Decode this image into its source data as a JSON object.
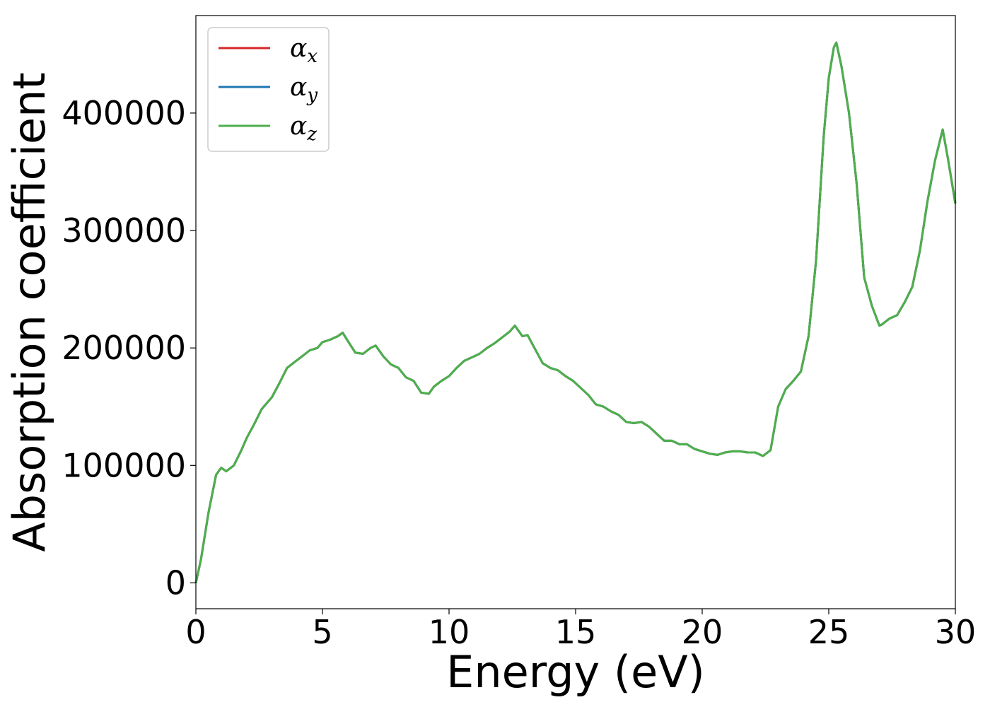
{
  "chart_data": {
    "type": "line",
    "title": "",
    "xlabel": "Energy (eV)",
    "ylabel": "Absorption coefficient",
    "xlim": [
      0,
      30
    ],
    "ylim": [
      -22000,
      483000
    ],
    "xticks": [
      0,
      5,
      10,
      15,
      20,
      25,
      30
    ],
    "xtick_labels": [
      "0",
      "5",
      "10",
      "15",
      "20",
      "25",
      "30"
    ],
    "yticks": [
      0,
      100000,
      200000,
      300000,
      400000
    ],
    "ytick_labels": [
      "0",
      "100000",
      "200000",
      "300000",
      "400000"
    ],
    "grid": false,
    "legend_position": "top-left",
    "x": [
      0.0,
      0.2,
      0.5,
      0.8,
      1.0,
      1.2,
      1.5,
      1.8,
      2.0,
      2.3,
      2.6,
      2.8,
      3.0,
      3.3,
      3.6,
      3.9,
      4.2,
      4.5,
      4.8,
      5.0,
      5.3,
      5.6,
      5.8,
      6.0,
      6.3,
      6.6,
      6.9,
      7.1,
      7.4,
      7.7,
      8.0,
      8.3,
      8.6,
      8.9,
      9.2,
      9.4,
      9.7,
      10.0,
      10.3,
      10.6,
      10.9,
      11.2,
      11.5,
      11.8,
      12.1,
      12.4,
      12.6,
      12.9,
      13.1,
      13.4,
      13.7,
      14.0,
      14.3,
      14.6,
      14.9,
      15.2,
      15.5,
      15.8,
      16.1,
      16.4,
      16.7,
      17.0,
      17.3,
      17.6,
      17.9,
      18.2,
      18.5,
      18.8,
      19.1,
      19.4,
      19.7,
      20.0,
      20.3,
      20.6,
      20.9,
      21.2,
      21.5,
      21.8,
      22.1,
      22.4,
      22.7,
      23.0,
      23.3,
      23.6,
      23.9,
      24.2,
      24.5,
      24.8,
      25.0,
      25.2,
      25.3,
      25.5,
      25.8,
      26.1,
      26.4,
      26.7,
      27.0,
      27.1,
      27.4,
      27.7,
      28.0,
      28.3,
      28.6,
      28.9,
      29.2,
      29.5,
      29.7,
      30.0
    ],
    "series": [
      {
        "name": "αx",
        "color": "#d62728",
        "y": [
          0,
          20000,
          60000,
          92000,
          98000,
          95000,
          100000,
          113000,
          123000,
          135000,
          148000,
          153000,
          158000,
          170000,
          183000,
          188000,
          193000,
          198000,
          200000,
          205000,
          207000,
          210000,
          213000,
          206000,
          196000,
          195000,
          200000,
          202000,
          193000,
          186000,
          183000,
          175000,
          172000,
          162000,
          161000,
          167000,
          172000,
          176000,
          183000,
          189000,
          192000,
          195000,
          200000,
          204000,
          209000,
          214000,
          219000,
          210000,
          211000,
          199000,
          187000,
          183000,
          181000,
          176000,
          172000,
          166000,
          160000,
          152000,
          150000,
          146000,
          143000,
          137000,
          136000,
          137000,
          133000,
          127000,
          121000,
          121000,
          118000,
          118000,
          114000,
          112000,
          110000,
          109000,
          111000,
          112000,
          112000,
          111000,
          111000,
          108000,
          113000,
          150000,
          165000,
          172000,
          180000,
          210000,
          275000,
          380000,
          430000,
          456000,
          460000,
          440000,
          400000,
          340000,
          260000,
          236000,
          219000,
          220000,
          225000,
          228000,
          239000,
          252000,
          283000,
          325000,
          360000,
          386000,
          362000,
          323000
        ]
      },
      {
        "name": "αy",
        "color": "#1f77b4",
        "y": [
          0,
          20000,
          60000,
          92000,
          98000,
          95000,
          100000,
          113000,
          123000,
          135000,
          148000,
          153000,
          158000,
          170000,
          183000,
          188000,
          193000,
          198000,
          200000,
          205000,
          207000,
          210000,
          213000,
          206000,
          196000,
          195000,
          200000,
          202000,
          193000,
          186000,
          183000,
          175000,
          172000,
          162000,
          161000,
          167000,
          172000,
          176000,
          183000,
          189000,
          192000,
          195000,
          200000,
          204000,
          209000,
          214000,
          219000,
          210000,
          211000,
          199000,
          187000,
          183000,
          181000,
          176000,
          172000,
          166000,
          160000,
          152000,
          150000,
          146000,
          143000,
          137000,
          136000,
          137000,
          133000,
          127000,
          121000,
          121000,
          118000,
          118000,
          114000,
          112000,
          110000,
          109000,
          111000,
          112000,
          112000,
          111000,
          111000,
          108000,
          113000,
          150000,
          165000,
          172000,
          180000,
          210000,
          275000,
          380000,
          430000,
          456000,
          460000,
          440000,
          400000,
          340000,
          260000,
          236000,
          219000,
          220000,
          225000,
          228000,
          239000,
          252000,
          283000,
          325000,
          360000,
          386000,
          362000,
          323000
        ]
      },
      {
        "name": "αz",
        "color": "#4daf4a",
        "y": [
          0,
          20000,
          60000,
          92000,
          98000,
          95000,
          100000,
          113000,
          123000,
          135000,
          148000,
          153000,
          158000,
          170000,
          183000,
          188000,
          193000,
          198000,
          200000,
          205000,
          207000,
          210000,
          213000,
          206000,
          196000,
          195000,
          200000,
          202000,
          193000,
          186000,
          183000,
          175000,
          172000,
          162000,
          161000,
          167000,
          172000,
          176000,
          183000,
          189000,
          192000,
          195000,
          200000,
          204000,
          209000,
          214000,
          219000,
          210000,
          211000,
          199000,
          187000,
          183000,
          181000,
          176000,
          172000,
          166000,
          160000,
          152000,
          150000,
          146000,
          143000,
          137000,
          136000,
          137000,
          133000,
          127000,
          121000,
          121000,
          118000,
          118000,
          114000,
          112000,
          110000,
          109000,
          111000,
          112000,
          112000,
          111000,
          111000,
          108000,
          113000,
          150000,
          165000,
          172000,
          180000,
          210000,
          275000,
          380000,
          430000,
          456000,
          460000,
          440000,
          400000,
          340000,
          260000,
          236000,
          219000,
          220000,
          225000,
          228000,
          239000,
          252000,
          283000,
          325000,
          360000,
          386000,
          362000,
          323000
        ]
      }
    ],
    "legend": [
      {
        "symbol": "α",
        "subscript": "x",
        "color": "#d62728"
      },
      {
        "symbol": "α",
        "subscript": "y",
        "color": "#1f77b4"
      },
      {
        "symbol": "α",
        "subscript": "z",
        "color": "#4daf4a"
      }
    ]
  }
}
